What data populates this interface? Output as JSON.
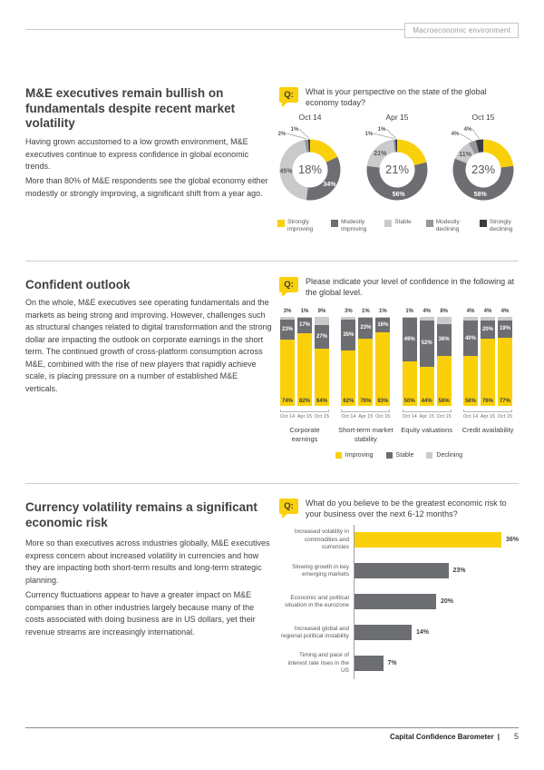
{
  "page": {
    "header_tag": "Macroeconomic environment",
    "q_label": "Q:",
    "footer": {
      "title": "Capital Confidence Barometer",
      "separator": "|",
      "page_number": "5"
    }
  },
  "colors": {
    "yellow": "#fad00a",
    "dark_gray": "#6d6e71",
    "light_gray": "#c9cacc",
    "mid_gray": "#96979a",
    "near_black": "#3b3c3e"
  },
  "sections": [
    {
      "title": "M&E executives remain bullish on fundamentals despite recent market volatility",
      "paragraphs": [
        "Having grown accustomed to a low growth environment, M&E executives continue to express confidence in global economic trends.",
        "More than 80% of M&E respondents see the global economy either modestly or strongly improving, a significant shift from a year ago."
      ],
      "question": "What is your perspective on the state of the global economy today?"
    },
    {
      "title": "Confident outlook",
      "paragraphs": [
        "On the whole, M&E executives see operating fundamentals and the markets as being strong and improving. However, challenges such as structural changes related to digital transformation and the strong dollar are impacting the outlook on corporate earnings in the short term. The continued growth of cross-platform consumption across M&E, combined with the rise of new players that rapidly achieve scale, is placing pressure on a number of established M&E verticals."
      ],
      "question": "Please indicate your level of confidence in the following at the global level."
    },
    {
      "title": "Currency volatility remains a significant economic risk",
      "paragraphs": [
        "More so than executives across industries globally, M&E executives express concern about increased volatility in currencies and how they are impacting both short-term results and long-term strategic planning.",
        "Currency fluctuations appear to have a greater impact on M&E companies than in other industries largely because many of the costs associated with doing business are in US dollars, yet their revenue streams are increasingly international."
      ],
      "question": "What do you believe to be the greatest economic risk to your business over the next 6-12 months?"
    }
  ],
  "chart_data": [
    {
      "type": "pie",
      "variant": "donut-set",
      "title": "What is your perspective on the state of the global economy today?",
      "legend": [
        "Strongly improving",
        "Modestly improving",
        "Stable",
        "Modestly declining",
        "Strongly declining"
      ],
      "charts": [
        {
          "label": "Oct 14",
          "center": "18%",
          "values": [
            18,
            34,
            45,
            2,
            1
          ]
        },
        {
          "label": "Apr 15",
          "center": "21%",
          "values": [
            21,
            56,
            21,
            1,
            1
          ]
        },
        {
          "label": "Oct 15",
          "center": "23%",
          "values": [
            23,
            58,
            11,
            4,
            4
          ]
        }
      ]
    },
    {
      "type": "bar",
      "variant": "stacked-100-vertical",
      "title": "Please indicate your level of confidence in the following at the global level.",
      "legend": [
        "Improving",
        "Stable",
        "Declining"
      ],
      "periods": [
        "Oct 14",
        "Apr 15",
        "Oct 15"
      ],
      "groups": [
        {
          "label": "Corporate earnings",
          "bars": [
            [
              74,
              23,
              3
            ],
            [
              82,
              17,
              1
            ],
            [
              64,
              27,
              9
            ]
          ]
        },
        {
          "label": "Short-term market stability",
          "bars": [
            [
              62,
              35,
              3
            ],
            [
              76,
              23,
              1
            ],
            [
              83,
              16,
              1
            ]
          ]
        },
        {
          "label": "Equity valuations",
          "bars": [
            [
              50,
              49,
              1
            ],
            [
              44,
              52,
              4
            ],
            [
              56,
              36,
              8
            ]
          ]
        },
        {
          "label": "Credit availability",
          "bars": [
            [
              56,
              40,
              4
            ],
            [
              76,
              20,
              4
            ],
            [
              77,
              19,
              4
            ]
          ]
        }
      ]
    },
    {
      "type": "bar",
      "variant": "horizontal",
      "title": "What do you believe to be the greatest economic risk to your business over the next 6-12 months?",
      "xmax": 40,
      "items": [
        {
          "label": "Increased volatility in commodities and currencies",
          "value": 36,
          "highlight": true
        },
        {
          "label": "Slowing growth in key emerging markets",
          "value": 23,
          "highlight": false
        },
        {
          "label": "Economic and political situation in the eurozone",
          "value": 20,
          "highlight": false
        },
        {
          "label": "Increased global and regional political instability",
          "value": 14,
          "highlight": false
        },
        {
          "label": "Timing and pace of interest rate rises in the US",
          "value": 7,
          "highlight": false
        }
      ]
    }
  ]
}
